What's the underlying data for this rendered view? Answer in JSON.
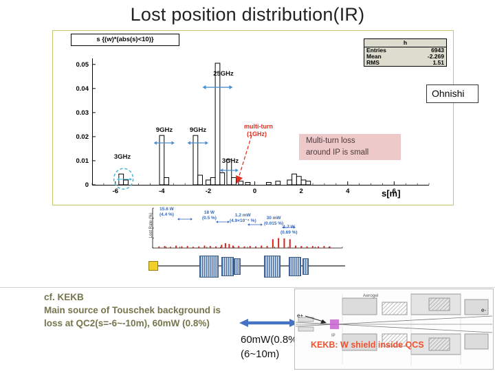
{
  "slide": {
    "title": "Lost position distribution(IR)",
    "author_box": "Ohnishi"
  },
  "chart_data": [
    {
      "type": "bar",
      "title": "s {(w)*(abs(s)<10)}",
      "xlabel": "s[m]",
      "ylabel": "",
      "xlim": [
        -7,
        7.5
      ],
      "ylim": [
        0,
        0.0525
      ],
      "bin_width": 0.2,
      "grid": false,
      "x_ticks": [
        {
          "v": -6,
          "label": "-6"
        },
        {
          "v": -4,
          "label": "-4"
        },
        {
          "v": -2,
          "label": "-2"
        },
        {
          "v": 0,
          "label": "0"
        },
        {
          "v": 2,
          "label": "2"
        },
        {
          "v": 4,
          "label": "4"
        },
        {
          "v": 6,
          "label": "6"
        }
      ],
      "y_ticks": [
        {
          "v": 0,
          "label": "0"
        },
        {
          "v": 0.01,
          "label": "0.01"
        },
        {
          "v": 0.02,
          "label": "0.02"
        },
        {
          "v": 0.03,
          "label": "0.03"
        },
        {
          "v": 0.04,
          "label": "0.04"
        },
        {
          "v": 0.05,
          "label": "0.05"
        }
      ],
      "stats": {
        "name": "h",
        "rows": [
          {
            "label": "Entries",
            "value": "6943"
          },
          {
            "label": "Mean",
            "value": "-2.269"
          },
          {
            "label": "RMS",
            "value": "1.51"
          }
        ]
      },
      "bars": [
        [
          -5.75,
          0.0045
        ],
        [
          -5.55,
          0.002
        ],
        [
          -4.0,
          0.0205
        ],
        [
          -3.8,
          0.003
        ],
        [
          -2.55,
          0.0205
        ],
        [
          -2.35,
          0.004
        ],
        [
          -2.0,
          0.002
        ],
        [
          -1.8,
          0.003
        ],
        [
          -1.6,
          0.0505
        ],
        [
          -1.4,
          0.005
        ],
        [
          -1.1,
          0.0105
        ],
        [
          -0.9,
          0.003
        ],
        [
          -0.6,
          0.0015
        ],
        [
          -0.3,
          0.001
        ],
        [
          0.6,
          0.001
        ],
        [
          1.0,
          0.0015
        ],
        [
          1.5,
          0.002
        ],
        [
          1.7,
          0.0045
        ],
        [
          1.9,
          0.0035
        ],
        [
          2.1,
          0.002
        ],
        [
          2.3,
          0.0015
        ]
      ],
      "annotations": {
        "freq_25": "25GHz",
        "freq_9a": "9GHz",
        "freq_9b": "9GHz",
        "freq_3_left": "3GHz",
        "freq_3_right": "3GHz",
        "multiturn_l1": "multi-turn",
        "multiturn_l2": "(1GHz)",
        "note_l1": "Multi-turn loss",
        "note_l2": "around IP is small"
      }
    },
    {
      "type": "scatter",
      "title": "",
      "xlabel": "",
      "ylabel": "Lost Rate (%)",
      "points_frac": [
        [
          0.03,
          0.04
        ],
        [
          0.06,
          0.05
        ],
        [
          0.09,
          0.03
        ],
        [
          0.12,
          0.06
        ],
        [
          0.15,
          0.04
        ],
        [
          0.18,
          0.05
        ],
        [
          0.21,
          0.03
        ],
        [
          0.24,
          0.04
        ],
        [
          0.27,
          0.06
        ],
        [
          0.3,
          0.05
        ],
        [
          0.33,
          0.04
        ],
        [
          0.36,
          0.08
        ],
        [
          0.38,
          0.12
        ],
        [
          0.4,
          0.1
        ],
        [
          0.42,
          0.06
        ],
        [
          0.45,
          0.05
        ],
        [
          0.48,
          0.04
        ],
        [
          0.51,
          0.05
        ],
        [
          0.54,
          0.04
        ],
        [
          0.57,
          0.06
        ],
        [
          0.6,
          0.05
        ],
        [
          0.63,
          0.22
        ],
        [
          0.66,
          0.25
        ],
        [
          0.69,
          0.24
        ],
        [
          0.72,
          0.22
        ],
        [
          0.75,
          0.06
        ],
        [
          0.78,
          0.05
        ],
        [
          0.81,
          0.04
        ],
        [
          0.84,
          0.05
        ],
        [
          0.87,
          0.04
        ],
        [
          0.9,
          0.05
        ],
        [
          0.93,
          0.04
        ]
      ],
      "annotations": [
        {
          "l1": "15.6 W",
          "l2": "(4.4 %)"
        },
        {
          "l1": "18 W",
          "l2": "(0.5 %)"
        },
        {
          "l1": "1.2 mW",
          "l2": "(4.9×10⁻⁴ %)"
        },
        {
          "l1": "30 mW",
          "l2": "(0.015 %)"
        },
        {
          "l1": "1.7 W",
          "l2": "(0.69 %)"
        }
      ]
    }
  ],
  "bottom": {
    "kekb_lines": [
      "cf. KEKB",
      "Main source of Touschek background is",
      "loss at  QC2(s=-6~-10m), 60mW (0.8%)"
    ],
    "power_line1": "60mW(0.8%)",
    "power_line2": "(6~10m)",
    "red_note": "KEKB: W shield inside QCS",
    "diagram_labels": {
      "e_plus": "e+",
      "e_minus": "e-",
      "aerogel": "Aerogel",
      "ip": "IP"
    }
  }
}
